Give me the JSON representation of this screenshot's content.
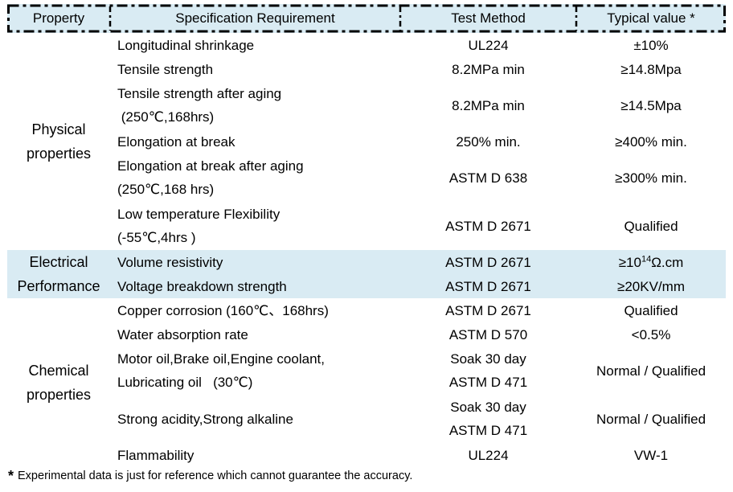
{
  "colors": {
    "header_bg": "#d9ebf3",
    "highlight_bg": "#d9ebf3",
    "border": "#000000"
  },
  "table": {
    "headers": [
      "Property",
      "Specification Requirement",
      "Test Method",
      "Typical value *"
    ],
    "groups": [
      {
        "property_lines": [
          "Physical",
          "properties"
        ],
        "highlight": false,
        "rows": [
          {
            "spec": [
              "Longitudinal shrinkage"
            ],
            "method": [
              "UL224"
            ],
            "value": "±10%"
          },
          {
            "spec": [
              "Tensile strength"
            ],
            "method": [
              "8.2MPa min"
            ],
            "value": "≥14.8Mpa"
          },
          {
            "spec": [
              "Tensile strength after aging",
              " (250℃,168hrs)"
            ],
            "method": [
              "8.2MPa min"
            ],
            "value": "≥14.5Mpa"
          },
          {
            "spec": [
              "Elongation at break"
            ],
            "method": [
              "250% min."
            ],
            "value": "≥400% min."
          },
          {
            "spec": [
              "Elongation at break after aging",
              "(250℃,168 hrs)"
            ],
            "method": [
              "ASTM D 638"
            ],
            "value": "≥300% min."
          },
          {
            "spec": [
              "Low temperature Flexibility",
              "(-55℃,4hrs )"
            ],
            "method": [
              "ASTM D 2671"
            ],
            "value": "Qualified"
          }
        ]
      },
      {
        "property_lines": [
          "Electrical",
          "Performance"
        ],
        "highlight": true,
        "rows": [
          {
            "spec": [
              "Volume resistivity"
            ],
            "method": [
              "ASTM D 2671"
            ],
            "value_parts": {
              "prefix": "≥10",
              "sup": "14",
              "suffix": "Ω.cm"
            }
          },
          {
            "spec": [
              "Voltage breakdown strength"
            ],
            "method": [
              "ASTM D 2671"
            ],
            "value": "≥20KV/mm"
          }
        ]
      },
      {
        "property_lines": [
          "Chemical",
          "properties"
        ],
        "highlight": false,
        "rows": [
          {
            "spec": [
              "Copper corrosion (160℃、168hrs)"
            ],
            "method": [
              "ASTM D 2671"
            ],
            "value": "Qualified"
          },
          {
            "spec": [
              "Water absorption rate"
            ],
            "method": [
              "ASTM D 570"
            ],
            "value": "<0.5%"
          },
          {
            "spec": [
              "Motor oil,Brake oil,Engine coolant,",
              "Lubricating oil   (30℃)"
            ],
            "method": [
              "Soak 30 day",
              "ASTM D 471"
            ],
            "value": "Normal / Qualified"
          },
          {
            "spec": [
              "Strong acidity,Strong alkaline"
            ],
            "method": [
              "Soak 30 day",
              "ASTM D 471"
            ],
            "value": "Normal / Qualified"
          },
          {
            "spec": [
              "Flammability"
            ],
            "method": [
              "UL224"
            ],
            "value": "VW-1"
          }
        ]
      }
    ]
  },
  "footnote": {
    "marker": "*",
    "text": "Experimental data is just for reference which cannot guarantee the accuracy."
  }
}
